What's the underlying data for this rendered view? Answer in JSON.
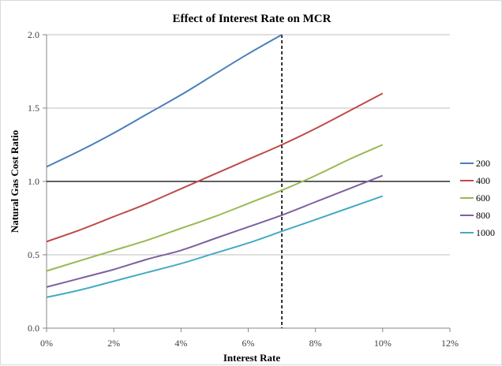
{
  "chart_data": {
    "type": "line",
    "title": "Effect of Interest Rate on MCR",
    "xlabel": "Interest Rate",
    "ylabel": "Natural Gas Cost Ratio",
    "xlim": [
      0,
      0.12
    ],
    "ylim": [
      0,
      2.0
    ],
    "x_ticks": [
      {
        "value": 0.0,
        "label": "0%"
      },
      {
        "value": 0.02,
        "label": "2%"
      },
      {
        "value": 0.04,
        "label": "4%"
      },
      {
        "value": 0.06,
        "label": "6%"
      },
      {
        "value": 0.08,
        "label": "8%"
      },
      {
        "value": 0.1,
        "label": "10%"
      },
      {
        "value": 0.12,
        "label": "12%"
      }
    ],
    "y_ticks": [
      {
        "value": 0.0,
        "label": "0.0"
      },
      {
        "value": 0.5,
        "label": "0.5"
      },
      {
        "value": 1.0,
        "label": "1.0"
      },
      {
        "value": 1.5,
        "label": "1.5"
      },
      {
        "value": 2.0,
        "label": "2.0"
      }
    ],
    "grid": "horizontal",
    "legend_position": "right",
    "reference_lines": [
      {
        "orientation": "horizontal",
        "value": 1.0,
        "style": "solid",
        "color": "#000000"
      },
      {
        "orientation": "vertical",
        "value": 0.07,
        "style": "dashed",
        "color": "#000000"
      }
    ],
    "x": [
      0.0,
      0.01,
      0.02,
      0.03,
      0.04,
      0.05,
      0.06,
      0.07,
      0.08,
      0.09,
      0.1
    ],
    "series": [
      {
        "name": "200",
        "color": "#4a7ebb",
        "values": [
          1.1,
          1.21,
          1.33,
          1.46,
          1.59,
          1.73,
          1.87,
          2.02,
          null,
          null,
          null
        ]
      },
      {
        "name": "400",
        "color": "#be4b48",
        "values": [
          0.59,
          0.67,
          0.76,
          0.85,
          0.95,
          1.05,
          1.15,
          1.25,
          1.36,
          1.48,
          1.6
        ]
      },
      {
        "name": "600",
        "color": "#98b954",
        "values": [
          0.39,
          0.46,
          0.53,
          0.6,
          0.68,
          0.76,
          0.85,
          0.94,
          1.04,
          1.15,
          1.25
        ]
      },
      {
        "name": "800",
        "color": "#7d60a0",
        "values": [
          0.28,
          0.34,
          0.4,
          0.47,
          0.53,
          0.61,
          0.69,
          0.77,
          0.86,
          0.95,
          1.04
        ]
      },
      {
        "name": "1000",
        "color": "#46aac5",
        "values": [
          0.21,
          0.26,
          0.32,
          0.38,
          0.44,
          0.51,
          0.58,
          0.66,
          0.74,
          0.82,
          0.9
        ]
      }
    ]
  }
}
